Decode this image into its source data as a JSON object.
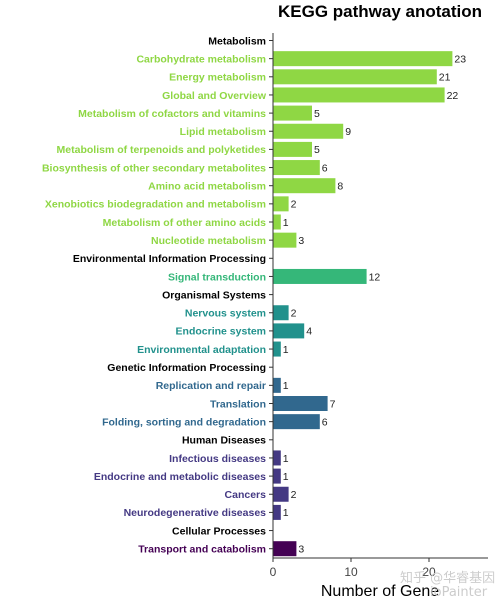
{
  "chart_data": {
    "type": "bar",
    "orientation": "horizontal",
    "title": "KEGG pathway anotation",
    "xlabel": "Number of Gene",
    "xlim": [
      0,
      27
    ],
    "xticks": [
      0,
      10,
      20
    ],
    "grid": false,
    "legend": "none",
    "rows": [
      {
        "label": "Metabolism",
        "value": null,
        "header": true,
        "color": "#000000"
      },
      {
        "label": "Carbohydrate metabolism",
        "value": 23,
        "color": "#8fd744"
      },
      {
        "label": "Energy metabolism",
        "value": 21,
        "color": "#8fd744"
      },
      {
        "label": "Global and Overview",
        "value": 22,
        "color": "#8fd744"
      },
      {
        "label": "Metabolism of cofactors and vitamins",
        "value": 5,
        "color": "#8fd744"
      },
      {
        "label": "Lipid metabolism",
        "value": 9,
        "color": "#8fd744"
      },
      {
        "label": "Metabolism of terpenoids and polyketides",
        "value": 5,
        "color": "#8fd744"
      },
      {
        "label": "Biosynthesis of other secondary metabolites",
        "value": 6,
        "color": "#8fd744"
      },
      {
        "label": "Amino acid metabolism",
        "value": 8,
        "color": "#8fd744"
      },
      {
        "label": "Xenobiotics biodegradation and metabolism",
        "value": 2,
        "color": "#8fd744"
      },
      {
        "label": "Metabolism of other amino acids",
        "value": 1,
        "color": "#8fd744"
      },
      {
        "label": "Nucleotide metabolism",
        "value": 3,
        "color": "#8fd744"
      },
      {
        "label": "Environmental Information Processing",
        "value": null,
        "header": true,
        "color": "#000000"
      },
      {
        "label": "Signal transduction",
        "value": 12,
        "color": "#35b779"
      },
      {
        "label": "Organismal Systems",
        "value": null,
        "header": true,
        "color": "#000000"
      },
      {
        "label": "Nervous system",
        "value": 2,
        "color": "#21918c"
      },
      {
        "label": "Endocrine system",
        "value": 4,
        "color": "#21918c"
      },
      {
        "label": "Environmental adaptation",
        "value": 1,
        "color": "#21918c"
      },
      {
        "label": "Genetic Information Processing",
        "value": null,
        "header": true,
        "color": "#000000"
      },
      {
        "label": "Replication and repair",
        "value": 1,
        "color": "#31688e"
      },
      {
        "label": "Translation",
        "value": 7,
        "color": "#31688e"
      },
      {
        "label": "Folding, sorting and degradation",
        "value": 6,
        "color": "#31688e"
      },
      {
        "label": "Human Diseases",
        "value": null,
        "header": true,
        "color": "#000000"
      },
      {
        "label": "Infectious diseases",
        "value": 1,
        "color": "#443983"
      },
      {
        "label": "Endocrine and metabolic diseases",
        "value": 1,
        "color": "#443983"
      },
      {
        "label": "Cancers",
        "value": 2,
        "color": "#443983"
      },
      {
        "label": "Neurodegenerative diseases",
        "value": 1,
        "color": "#443983"
      },
      {
        "label": "Cellular Processes",
        "value": null,
        "header": true,
        "color": "#000000"
      },
      {
        "label": "Transport and catabolism",
        "value": 3,
        "color": "#440154"
      }
    ]
  },
  "watermark": {
    "line1": "知乎 @华睿基因",
    "line2": "ioPainter"
  }
}
